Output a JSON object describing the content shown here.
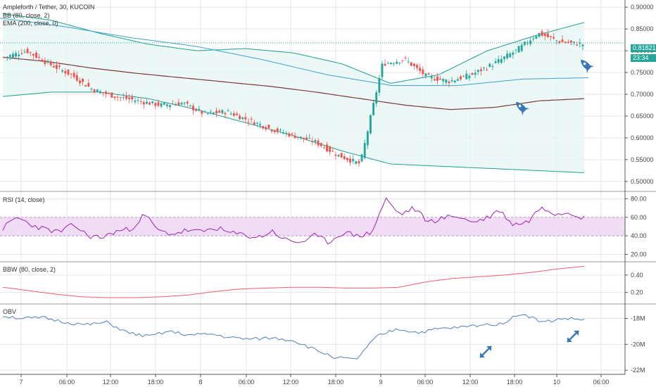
{
  "header": {
    "title": "Ampleforth / Tether, 30, KUCOIN",
    "bb_label": "BB (80, close, 2)",
    "ema_label": "EMA (200, close, 0)"
  },
  "price_tags": {
    "last": "0.81821",
    "countdown": "23:34"
  },
  "colors": {
    "up": "#26a69a",
    "down": "#ef5350",
    "bb": "#1f9e8f",
    "ema": "#7b3b3b",
    "ema50": "#3fa0d8",
    "rsi": "#9c27b0",
    "rsi_band": "#f0dcf5",
    "bbw": "#ef5f6b",
    "obv": "#4f7fbf",
    "grid": "#e6e6e6",
    "axis": "#555555"
  },
  "icons": [
    "rocket-icon",
    "rocket-icon",
    "diagonal-arrows-icon",
    "diagonal-arrows-icon"
  ],
  "chart_data": [
    {
      "type": "candlestick",
      "title": "Ampleforth / Tether, 30, KUCOIN",
      "ylim": [
        0.49,
        0.91
      ],
      "yticks": [
        "0.90000",
        "0.85000",
        "0.80000",
        "0.75000",
        "0.70000",
        "0.65000",
        "0.60000",
        "0.55000",
        "0.50000"
      ],
      "ytick_values": [
        0.9,
        0.85,
        0.8,
        0.75,
        0.7,
        0.65,
        0.6,
        0.55,
        0.5
      ],
      "close_anchors": [
        0.785,
        0.8,
        0.77,
        0.745,
        0.71,
        0.695,
        0.685,
        0.675,
        0.68,
        0.655,
        0.66,
        0.64,
        0.62,
        0.605,
        0.59,
        0.56,
        0.54,
        0.77,
        0.78,
        0.74,
        0.73,
        0.745,
        0.77,
        0.8,
        0.84,
        0.82,
        0.815
      ],
      "ema200": [
        0.785,
        0.775,
        0.76,
        0.748,
        0.738,
        0.728,
        0.718,
        0.705,
        0.69,
        0.675,
        0.665,
        0.67,
        0.685,
        0.69
      ],
      "ema_fast": [
        0.875,
        0.855,
        0.83,
        0.81,
        0.78,
        0.745,
        0.72,
        0.72,
        0.735,
        0.738
      ],
      "bb_upper": [
        0.885,
        0.87,
        0.84,
        0.815,
        0.8,
        0.805,
        0.795,
        0.77,
        0.725,
        0.745,
        0.8,
        0.835,
        0.865
      ],
      "bb_lower": [
        0.695,
        0.705,
        0.705,
        0.69,
        0.665,
        0.635,
        0.605,
        0.57,
        0.54,
        0.535,
        0.53,
        0.525,
        0.52
      ],
      "bb_basis": [
        0.795,
        0.785,
        0.77,
        0.752,
        0.732,
        0.72,
        0.71,
        0.7,
        0.69,
        0.68,
        0.67,
        0.677,
        0.69
      ]
    },
    {
      "type": "line",
      "title": "RSI (14, close)",
      "ylim": [
        15,
        85
      ],
      "yticks": [
        "80.00",
        "60.00",
        "40.00",
        "20.00"
      ],
      "ytick_values": [
        80,
        60,
        40,
        20
      ],
      "band": [
        40,
        60
      ],
      "values": [
        48,
        60,
        52,
        47,
        44,
        52,
        40,
        38,
        45,
        47,
        63,
        45,
        42,
        46,
        44,
        49,
        43,
        41,
        38,
        45,
        35,
        33,
        40,
        33,
        44,
        40,
        43,
        80,
        63,
        70,
        55,
        59,
        62,
        55,
        58,
        68,
        52,
        55,
        72,
        64,
        66,
        59
      ]
    },
    {
      "type": "line",
      "title": "BBW (80, close, 2)",
      "ylim": [
        0.1,
        0.52
      ],
      "yticks": [
        "0.40",
        "0.20"
      ],
      "ytick_values": [
        0.4,
        0.2
      ],
      "values": [
        0.26,
        0.22,
        0.18,
        0.15,
        0.14,
        0.14,
        0.15,
        0.17,
        0.21,
        0.24,
        0.25,
        0.26,
        0.26,
        0.25,
        0.25,
        0.26,
        0.32,
        0.36,
        0.38,
        0.4,
        0.43,
        0.47,
        0.5
      ]
    },
    {
      "type": "line",
      "title": "OBV",
      "ylim": [
        -22.1,
        -17.1
      ],
      "yticks": [
        "-18M",
        "-20M",
        "-22M"
      ],
      "ytick_values": [
        -18,
        -20,
        -22
      ],
      "values": [
        -17.8,
        -18.0,
        -17.95,
        -18.3,
        -18.5,
        -18.3,
        -19.1,
        -19.4,
        -19.0,
        -19.3,
        -19.2,
        -19.5,
        -19.6,
        -19.5,
        -19.7,
        -20.4,
        -21.0,
        -21.2,
        -19.4,
        -18.8,
        -19.1,
        -18.8,
        -18.7,
        -18.5,
        -18.4,
        -17.6,
        -18.3,
        -18.0,
        -18.1
      ]
    }
  ],
  "x_axis": {
    "labels": [
      "7",
      "06:00",
      "12:00",
      "18:00",
      "8",
      "06:00",
      "12:00",
      "18:00",
      "9",
      "06:00",
      "12:00",
      "18:00",
      "10",
      "06:00"
    ]
  }
}
